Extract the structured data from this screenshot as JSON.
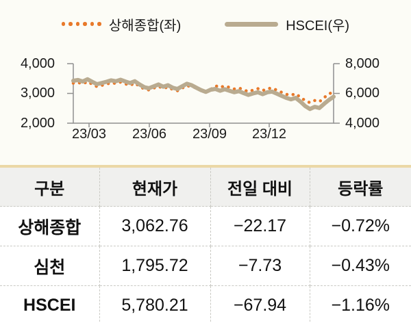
{
  "colors": {
    "orange": "#E8792A",
    "tan": "#B9AB90",
    "table_top_border": "#EBD8A6",
    "page_bg": "#FCFCF6",
    "axis": "#8F8F8F"
  },
  "legend": {
    "series1_label": "상해종합(좌)",
    "series2_label": "HSCEI(우)"
  },
  "chart_data": {
    "type": "line",
    "title": "",
    "x_ticks": [
      "23/03",
      "23/06",
      "23/09",
      "23/12"
    ],
    "left_axis": {
      "ticks": [
        "4,000",
        "3,000",
        "2,000"
      ],
      "range": [
        2000,
        4000
      ]
    },
    "right_axis": {
      "ticks": [
        "8,000",
        "6,000",
        "4,000"
      ],
      "range": [
        4000,
        8000
      ]
    },
    "grid": false,
    "legend_position": "top",
    "series": [
      {
        "name": "상해종합(좌)",
        "axis": "left",
        "style": "dotted",
        "color": "#E8792A",
        "values": [
          3345,
          3370,
          3320,
          3395,
          3310,
          3230,
          3270,
          3310,
          3360,
          3330,
          3380,
          3320,
          3270,
          3350,
          3240,
          3150,
          3115,
          3180,
          3240,
          3165,
          3215,
          3130,
          3090,
          3180,
          3265,
          3215,
          3190,
          3110,
          3050,
          3125,
          3260,
          3200,
          3250,
          3200,
          3150,
          3185,
          3120,
          3060,
          3110,
          3160,
          3095,
          3160,
          3180,
          3110,
          3040,
          2970,
          2940,
          2990,
          2870,
          2760,
          2690,
          2760,
          2720,
          2860,
          2980,
          3062
        ]
      },
      {
        "name": "HSCEI(우)",
        "axis": "right",
        "style": "solid",
        "color": "#B9AB90",
        "values": [
          6850,
          6900,
          6800,
          6950,
          6780,
          6620,
          6700,
          6780,
          6880,
          6820,
          6920,
          6800,
          6700,
          6820,
          6600,
          6420,
          6350,
          6480,
          6600,
          6450,
          6550,
          6380,
          6300,
          6480,
          6650,
          6550,
          6380,
          6220,
          6100,
          6250,
          6300,
          6180,
          6280,
          6180,
          6080,
          6150,
          6020,
          5900,
          6000,
          6080,
          5950,
          6080,
          6120,
          5980,
          5840,
          5700,
          5600,
          5700,
          5450,
          5150,
          4950,
          5100,
          5020,
          5300,
          5560,
          5780
        ]
      }
    ]
  },
  "table": {
    "headers": [
      "구분",
      "현재가",
      "전일 대비",
      "등락률"
    ],
    "rows": [
      {
        "name": "상해종합",
        "price": "3,062.76",
        "change": "−22.17",
        "pct": "−0.72%"
      },
      {
        "name": "심천",
        "price": "1,795.72",
        "change": "−7.73",
        "pct": "−0.43%"
      },
      {
        "name": "HSCEI",
        "price": "5,780.21",
        "change": "−67.94",
        "pct": "−1.16%"
      }
    ]
  }
}
